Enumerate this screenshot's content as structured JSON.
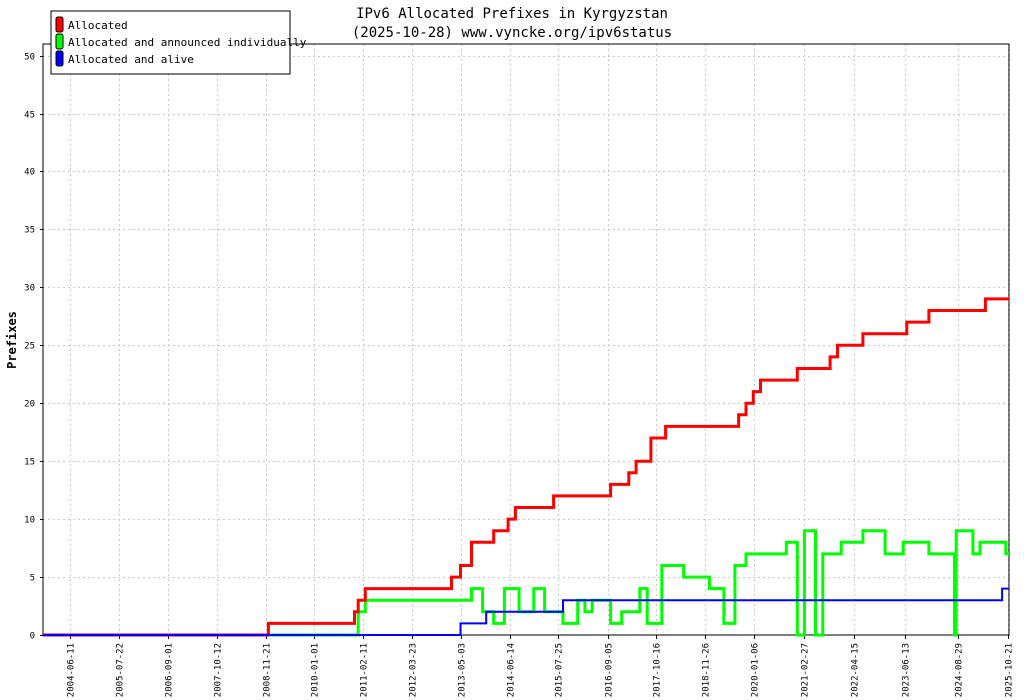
{
  "chart_data": {
    "type": "line",
    "title": "IPv6 Allocated Prefixes in Kyrgyzstan",
    "subtitle": "(2025-10-28) www.vyncke.org/ipv6status",
    "ylabel": "Prefixes",
    "xlabel": "",
    "ylim": [
      0,
      51
    ],
    "xlim": [
      "2003-10-28",
      "2025-10-28"
    ],
    "yticks": [
      0,
      5,
      10,
      15,
      20,
      25,
      30,
      35,
      40,
      45,
      50
    ],
    "xticks": [
      "2004-06-11",
      "2005-07-22",
      "2006-09-01",
      "2007-10-12",
      "2008-11-21",
      "2010-01-01",
      "2011-02-11",
      "2012-03-23",
      "2013-05-03",
      "2014-06-14",
      "2015-07-25",
      "2016-09-05",
      "2017-10-16",
      "2018-11-26",
      "2020-01-06",
      "2021-02-27",
      "2022-04-15",
      "2023-06-13",
      "2024-08-29",
      "2025-10-21"
    ],
    "grid": true,
    "legend_position": "top-left",
    "series": [
      {
        "name": "Allocated",
        "color": "#ff0000",
        "points": [
          [
            "2003-10-28",
            0
          ],
          [
            "2008-12-15",
            0
          ],
          [
            "2008-12-15",
            1
          ],
          [
            "2010-12-01",
            1
          ],
          [
            "2010-12-01",
            2
          ],
          [
            "2011-01-01",
            2
          ],
          [
            "2011-01-01",
            3
          ],
          [
            "2011-03-01",
            3
          ],
          [
            "2011-03-01",
            4
          ],
          [
            "2013-02-15",
            4
          ],
          [
            "2013-02-15",
            5
          ],
          [
            "2013-05-01",
            5
          ],
          [
            "2013-05-01",
            6
          ],
          [
            "2013-08-01",
            6
          ],
          [
            "2013-08-01",
            8
          ],
          [
            "2014-02-01",
            8
          ],
          [
            "2014-02-01",
            9
          ],
          [
            "2014-06-01",
            9
          ],
          [
            "2014-06-01",
            10
          ],
          [
            "2014-08-01",
            10
          ],
          [
            "2014-08-01",
            11
          ],
          [
            "2015-06-15",
            11
          ],
          [
            "2015-06-15",
            12
          ],
          [
            "2016-10-01",
            12
          ],
          [
            "2016-10-01",
            13
          ],
          [
            "2017-03-01",
            13
          ],
          [
            "2017-03-01",
            14
          ],
          [
            "2017-05-01",
            14
          ],
          [
            "2017-05-01",
            15
          ],
          [
            "2017-09-01",
            15
          ],
          [
            "2017-09-01",
            17
          ],
          [
            "2018-01-01",
            17
          ],
          [
            "2018-01-01",
            18
          ],
          [
            "2019-09-01",
            18
          ],
          [
            "2019-09-01",
            19
          ],
          [
            "2019-11-01",
            19
          ],
          [
            "2019-11-01",
            20
          ],
          [
            "2020-01-01",
            20
          ],
          [
            "2020-01-01",
            21
          ],
          [
            "2020-03-01",
            21
          ],
          [
            "2020-03-01",
            22
          ],
          [
            "2021-01-01",
            22
          ],
          [
            "2021-01-01",
            23
          ],
          [
            "2021-10-01",
            23
          ],
          [
            "2021-10-01",
            24
          ],
          [
            "2021-12-01",
            24
          ],
          [
            "2021-12-01",
            25
          ],
          [
            "2022-07-01",
            25
          ],
          [
            "2022-07-01",
            26
          ],
          [
            "2023-07-01",
            26
          ],
          [
            "2023-07-01",
            27
          ],
          [
            "2024-01-01",
            27
          ],
          [
            "2024-01-01",
            28
          ],
          [
            "2025-04-15",
            28
          ],
          [
            "2025-04-15",
            29
          ],
          [
            "2025-10-28",
            29
          ]
        ]
      },
      {
        "name": "Allocated and announced individually",
        "color": "#00ff00",
        "points": [
          [
            "2003-10-28",
            0
          ],
          [
            "2011-01-01",
            0
          ],
          [
            "2011-01-01",
            2
          ],
          [
            "2011-03-01",
            2
          ],
          [
            "2011-03-01",
            3
          ],
          [
            "2013-08-01",
            3
          ],
          [
            "2013-08-01",
            4
          ],
          [
            "2013-11-01",
            4
          ],
          [
            "2013-11-01",
            2
          ],
          [
            "2014-02-01",
            2
          ],
          [
            "2014-02-01",
            1
          ],
          [
            "2014-05-01",
            1
          ],
          [
            "2014-05-01",
            4
          ],
          [
            "2014-09-01",
            4
          ],
          [
            "2014-09-01",
            2
          ],
          [
            "2015-01-01",
            2
          ],
          [
            "2015-01-01",
            4
          ],
          [
            "2015-04-01",
            4
          ],
          [
            "2015-04-01",
            2
          ],
          [
            "2015-09-01",
            2
          ],
          [
            "2015-09-01",
            1
          ],
          [
            "2016-01-01",
            1
          ],
          [
            "2016-01-01",
            3
          ],
          [
            "2016-03-01",
            3
          ],
          [
            "2016-03-01",
            2
          ],
          [
            "2016-05-01",
            2
          ],
          [
            "2016-05-01",
            3
          ],
          [
            "2016-10-01",
            3
          ],
          [
            "2016-10-01",
            1
          ],
          [
            "2017-01-01",
            1
          ],
          [
            "2017-01-01",
            2
          ],
          [
            "2017-06-01",
            2
          ],
          [
            "2017-06-01",
            4
          ],
          [
            "2017-08-01",
            4
          ],
          [
            "2017-08-01",
            1
          ],
          [
            "2017-12-01",
            1
          ],
          [
            "2017-12-01",
            6
          ],
          [
            "2018-06-01",
            6
          ],
          [
            "2018-06-01",
            5
          ],
          [
            "2019-01-01",
            5
          ],
          [
            "2019-01-01",
            4
          ],
          [
            "2019-05-01",
            4
          ],
          [
            "2019-05-01",
            1
          ],
          [
            "2019-08-01",
            1
          ],
          [
            "2019-08-01",
            6
          ],
          [
            "2019-11-01",
            6
          ],
          [
            "2019-11-01",
            7
          ],
          [
            "2020-10-01",
            7
          ],
          [
            "2020-10-01",
            8
          ],
          [
            "2021-01-01",
            8
          ],
          [
            "2021-01-01",
            0
          ],
          [
            "2021-03-01",
            0
          ],
          [
            "2021-03-01",
            9
          ],
          [
            "2021-06-01",
            9
          ],
          [
            "2021-06-01",
            0
          ],
          [
            "2021-08-01",
            0
          ],
          [
            "2021-08-01",
            7
          ],
          [
            "2022-01-01",
            7
          ],
          [
            "2022-01-01",
            8
          ],
          [
            "2022-07-01",
            8
          ],
          [
            "2022-07-01",
            9
          ],
          [
            "2023-01-01",
            9
          ],
          [
            "2023-01-01",
            7
          ],
          [
            "2023-06-01",
            7
          ],
          [
            "2023-06-01",
            8
          ],
          [
            "2024-01-01",
            8
          ],
          [
            "2024-01-01",
            7
          ],
          [
            "2024-08-01",
            7
          ],
          [
            "2024-08-01",
            0
          ],
          [
            "2024-08-15",
            0
          ],
          [
            "2024-08-15",
            9
          ],
          [
            "2025-01-01",
            9
          ],
          [
            "2025-01-01",
            7
          ],
          [
            "2025-03-01",
            7
          ],
          [
            "2025-03-01",
            8
          ],
          [
            "2025-10-01",
            8
          ],
          [
            "2025-10-01",
            7
          ],
          [
            "2025-10-28",
            7
          ]
        ]
      },
      {
        "name": "Allocated and alive",
        "color": "#0000ff",
        "points": [
          [
            "2003-10-28",
            0
          ],
          [
            "2013-05-01",
            0
          ],
          [
            "2013-05-01",
            1
          ],
          [
            "2013-12-01",
            1
          ],
          [
            "2013-12-01",
            2
          ],
          [
            "2015-09-01",
            2
          ],
          [
            "2015-09-01",
            3
          ],
          [
            "2025-09-01",
            3
          ],
          [
            "2025-09-01",
            4
          ],
          [
            "2025-10-28",
            4
          ]
        ]
      }
    ]
  }
}
